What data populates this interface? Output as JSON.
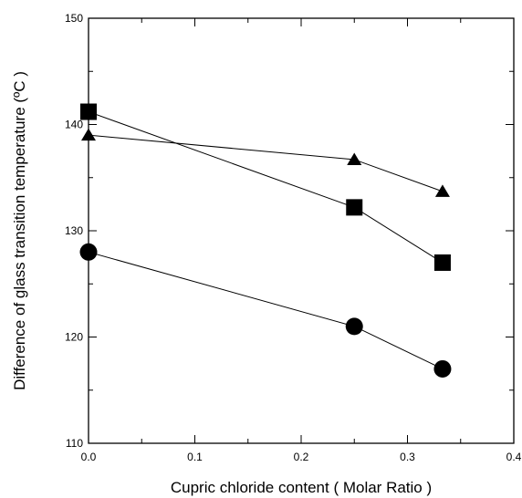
{
  "chart_data": {
    "type": "scatter",
    "title": "",
    "xlabel": "Cupric chloride content ( Molar Ratio )",
    "ylabel": "Difference of glass transition temperature (ºC )",
    "xlim": [
      0.0,
      0.4
    ],
    "ylim": [
      110,
      150
    ],
    "x_ticks": [
      0.0,
      0.1,
      0.2,
      0.3,
      0.4
    ],
    "x_tick_labels": [
      "0.0",
      "0.1",
      "0.2",
      "0.3",
      "0.4"
    ],
    "y_ticks": [
      110,
      120,
      130,
      140,
      150
    ],
    "y_tick_labels": [
      "110",
      "120",
      "130",
      "140",
      "150"
    ],
    "grid": false,
    "legend": "none",
    "series": [
      {
        "marker": "square",
        "color": "#000000",
        "x": [
          0.0,
          0.25,
          0.333
        ],
        "y": [
          141.2,
          132.2,
          127.0
        ]
      },
      {
        "marker": "triangle",
        "color": "#000000",
        "x": [
          0.0,
          0.25,
          0.333
        ],
        "y": [
          139.0,
          136.7,
          133.7
        ]
      },
      {
        "marker": "circle",
        "color": "#000000",
        "x": [
          0.0,
          0.25,
          0.333
        ],
        "y": [
          128.0,
          121.0,
          117.0
        ]
      }
    ]
  }
}
